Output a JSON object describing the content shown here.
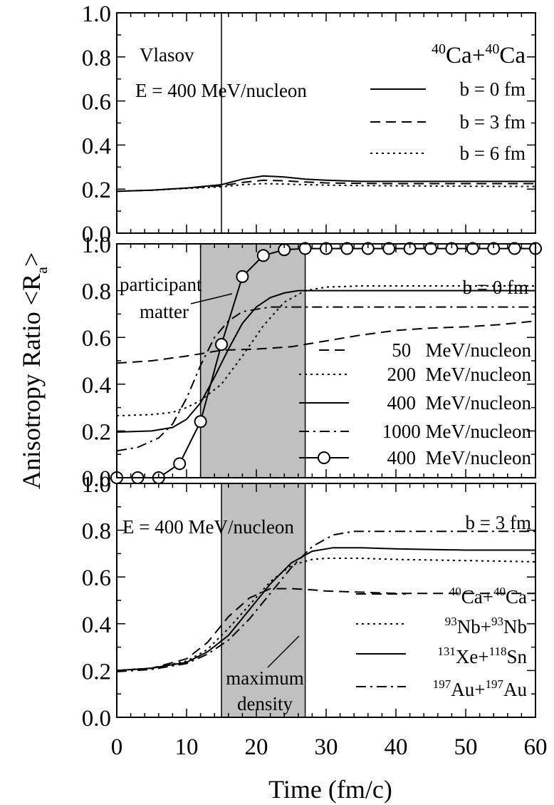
{
  "figure": {
    "xlabel": "Time (fm/c)",
    "ylabel": "Anisotropy Ratio <R",
    "ylabel_sub": "a",
    "ylabel_close": ">",
    "x_tick_labels": [
      "0",
      "10",
      "20",
      "30",
      "40",
      "50",
      "60"
    ],
    "y_tick_labels": [
      "0.0",
      "0.2",
      "0.4",
      "0.6",
      "0.8",
      "1.0"
    ]
  },
  "chart_data": [
    {
      "type": "line",
      "xlim": [
        0,
        60
      ],
      "ylim": [
        0,
        1
      ],
      "xlabel": "Time (fm/c)",
      "ylabel": "Anisotropy Ratio <Ra>",
      "annotations": {
        "model": "Vlasov",
        "energy": "E = 400 MeV/nucleon",
        "system_mass_left": "40",
        "system_left": "Ca+",
        "system_mass_right": "40",
        "system_right": "Ca"
      },
      "vline_x": 15,
      "series": [
        {
          "name": "b = 0 fm",
          "style": "solid",
          "x": [
            0,
            5,
            10,
            15,
            18,
            21,
            24,
            27,
            30,
            35,
            40,
            50,
            60
          ],
          "y": [
            0.19,
            0.195,
            0.205,
            0.22,
            0.245,
            0.26,
            0.255,
            0.245,
            0.24,
            0.235,
            0.235,
            0.235,
            0.235
          ]
        },
        {
          "name": "b = 3 fm",
          "style": "dashed",
          "x": [
            0,
            5,
            10,
            15,
            18,
            21,
            24,
            27,
            30,
            35,
            40,
            50,
            60
          ],
          "y": [
            0.19,
            0.195,
            0.205,
            0.215,
            0.23,
            0.24,
            0.238,
            0.232,
            0.228,
            0.226,
            0.225,
            0.225,
            0.225
          ]
        },
        {
          "name": "b = 6 fm",
          "style": "dotted",
          "x": [
            0,
            5,
            10,
            15,
            18,
            21,
            24,
            27,
            30,
            35,
            40,
            50,
            60
          ],
          "y": [
            0.19,
            0.195,
            0.203,
            0.21,
            0.22,
            0.225,
            0.223,
            0.22,
            0.218,
            0.216,
            0.215,
            0.213,
            0.212
          ]
        }
      ]
    },
    {
      "type": "line",
      "xlim": [
        0,
        60
      ],
      "ylim": [
        0,
        1
      ],
      "annotations": {
        "impact": "b = 0 fm",
        "label_line1": "participant",
        "label_line2": "matter"
      },
      "shaded_x": [
        12,
        27
      ],
      "series": [
        {
          "name": "50   MeV/nucleon",
          "style": "dashed",
          "x": [
            0,
            5,
            10,
            12,
            15,
            20,
            25,
            30,
            35,
            40,
            45,
            50,
            55,
            60
          ],
          "y": [
            0.49,
            0.5,
            0.52,
            0.53,
            0.545,
            0.55,
            0.56,
            0.585,
            0.61,
            0.63,
            0.64,
            0.645,
            0.655,
            0.67
          ]
        },
        {
          "name": "200  MeV/nucleon",
          "style": "dotted",
          "x": [
            0,
            5,
            8,
            10,
            12,
            15,
            18,
            21,
            24,
            27,
            30,
            35,
            40,
            50,
            60
          ],
          "y": [
            0.265,
            0.27,
            0.28,
            0.3,
            0.33,
            0.4,
            0.52,
            0.65,
            0.75,
            0.8,
            0.815,
            0.82,
            0.82,
            0.82,
            0.82
          ]
        },
        {
          "name": "400  MeV/nucleon",
          "style": "solid",
          "x": [
            0,
            5,
            8,
            10,
            12,
            14,
            16,
            18,
            20,
            22,
            24,
            26,
            28,
            30,
            40,
            50,
            60
          ],
          "y": [
            0.195,
            0.2,
            0.215,
            0.25,
            0.32,
            0.43,
            0.55,
            0.66,
            0.73,
            0.77,
            0.79,
            0.8,
            0.8,
            0.8,
            0.8,
            0.8,
            0.8
          ]
        },
        {
          "name": "1000 MeV/nucleon",
          "style": "dashdot",
          "x": [
            0,
            3,
            6,
            8,
            10,
            12,
            14,
            16,
            18,
            20,
            22,
            25,
            30,
            40,
            50,
            60
          ],
          "y": [
            0.115,
            0.13,
            0.17,
            0.23,
            0.34,
            0.48,
            0.6,
            0.67,
            0.71,
            0.72,
            0.73,
            0.73,
            0.73,
            0.73,
            0.73,
            0.73
          ]
        },
        {
          "name": "400  MeV/nucleon",
          "style": "solid-circles",
          "x": [
            0,
            3,
            6,
            9,
            12,
            15,
            18,
            21,
            24,
            27,
            30,
            33,
            36,
            39,
            42,
            45,
            48,
            51,
            54,
            57,
            60
          ],
          "y": [
            0.0,
            0.0,
            0.0,
            0.06,
            0.24,
            0.57,
            0.86,
            0.95,
            0.975,
            0.98,
            0.98,
            0.98,
            0.98,
            0.98,
            0.98,
            0.98,
            0.98,
            0.98,
            0.98,
            0.98,
            0.98
          ]
        }
      ]
    },
    {
      "type": "line",
      "xlim": [
        0,
        60
      ],
      "ylim": [
        0,
        1
      ],
      "annotations": {
        "energy": "E = 400 MeV/nucleon",
        "impact": "b = 3 fm",
        "label_line1": "maximum",
        "label_line2": "density"
      },
      "shaded_x": [
        15,
        27
      ],
      "series": [
        {
          "name_mass_a": "40",
          "name_a": "Ca+",
          "name_mass_b": "40",
          "name_b": "Ca",
          "style": "dashed",
          "x": [
            0,
            5,
            10,
            13,
            16,
            19,
            22,
            25,
            28,
            30,
            35,
            40,
            50,
            60
          ],
          "y": [
            0.2,
            0.21,
            0.25,
            0.32,
            0.43,
            0.51,
            0.55,
            0.55,
            0.545,
            0.54,
            0.535,
            0.53,
            0.53,
            0.53
          ]
        },
        {
          "name_mass_a": "93",
          "name_a": "Nb+",
          "name_mass_b": "93",
          "name_b": "Nb",
          "style": "dotted",
          "x": [
            0,
            5,
            10,
            13,
            16,
            19,
            22,
            25,
            28,
            30,
            35,
            40,
            50,
            60
          ],
          "y": [
            0.2,
            0.21,
            0.24,
            0.29,
            0.38,
            0.48,
            0.58,
            0.65,
            0.675,
            0.68,
            0.68,
            0.675,
            0.67,
            0.665
          ]
        },
        {
          "name_mass_a": "131",
          "name_a": "Xe+",
          "name_mass_b": "118",
          "name_b": "Sn",
          "style": "solid",
          "x": [
            0,
            5,
            10,
            13,
            16,
            19,
            22,
            25,
            28,
            31,
            35,
            40,
            50,
            60
          ],
          "y": [
            0.2,
            0.21,
            0.235,
            0.28,
            0.35,
            0.46,
            0.57,
            0.66,
            0.71,
            0.725,
            0.725,
            0.72,
            0.715,
            0.715
          ]
        },
        {
          "name_mass_a": "197",
          "name_a": "Au+",
          "name_mass_b": "197",
          "name_b": "Au",
          "style": "dashdot",
          "x": [
            0,
            5,
            10,
            13,
            16,
            19,
            22,
            25,
            28,
            31,
            34,
            37,
            40,
            50,
            60
          ],
          "y": [
            0.195,
            0.205,
            0.23,
            0.27,
            0.33,
            0.42,
            0.53,
            0.64,
            0.73,
            0.78,
            0.795,
            0.795,
            0.795,
            0.795,
            0.795
          ]
        }
      ]
    }
  ]
}
